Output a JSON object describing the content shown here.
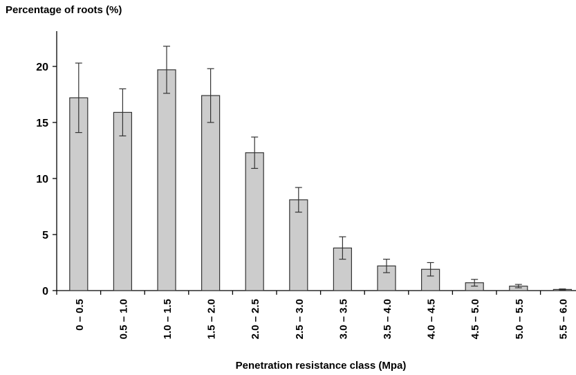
{
  "chart_data": {
    "type": "bar",
    "ylabel": "Percentage of roots (%)",
    "xlabel": "Penetration resistance class (Mpa)",
    "categories": [
      "0 – 0.5",
      "0.5 – 1.0",
      "1.0 – 1.5",
      "1.5 – 2.0",
      "2.0 – 2.5",
      "2.5 – 3.0",
      "3.0 – 3.5",
      "3.5 – 4.0",
      "4.0 – 4.5",
      "4.5 – 5.0",
      "5.0 – 5.5",
      "5.5 – 6.0"
    ],
    "values": [
      17.2,
      15.9,
      19.7,
      17.4,
      12.3,
      8.1,
      3.8,
      2.2,
      1.9,
      0.7,
      0.4,
      0.1
    ],
    "error": [
      3.1,
      2.1,
      2.1,
      2.4,
      1.4,
      1.1,
      1.0,
      0.6,
      0.6,
      0.3,
      0.15,
      0.05
    ],
    "ylim": [
      0,
      25
    ],
    "yticks": [
      0,
      5,
      10,
      15,
      20
    ],
    "grid": false,
    "colors": {
      "bar_fill": "#cccccc",
      "bar_stroke": "#333333",
      "axis": "#000000"
    }
  }
}
